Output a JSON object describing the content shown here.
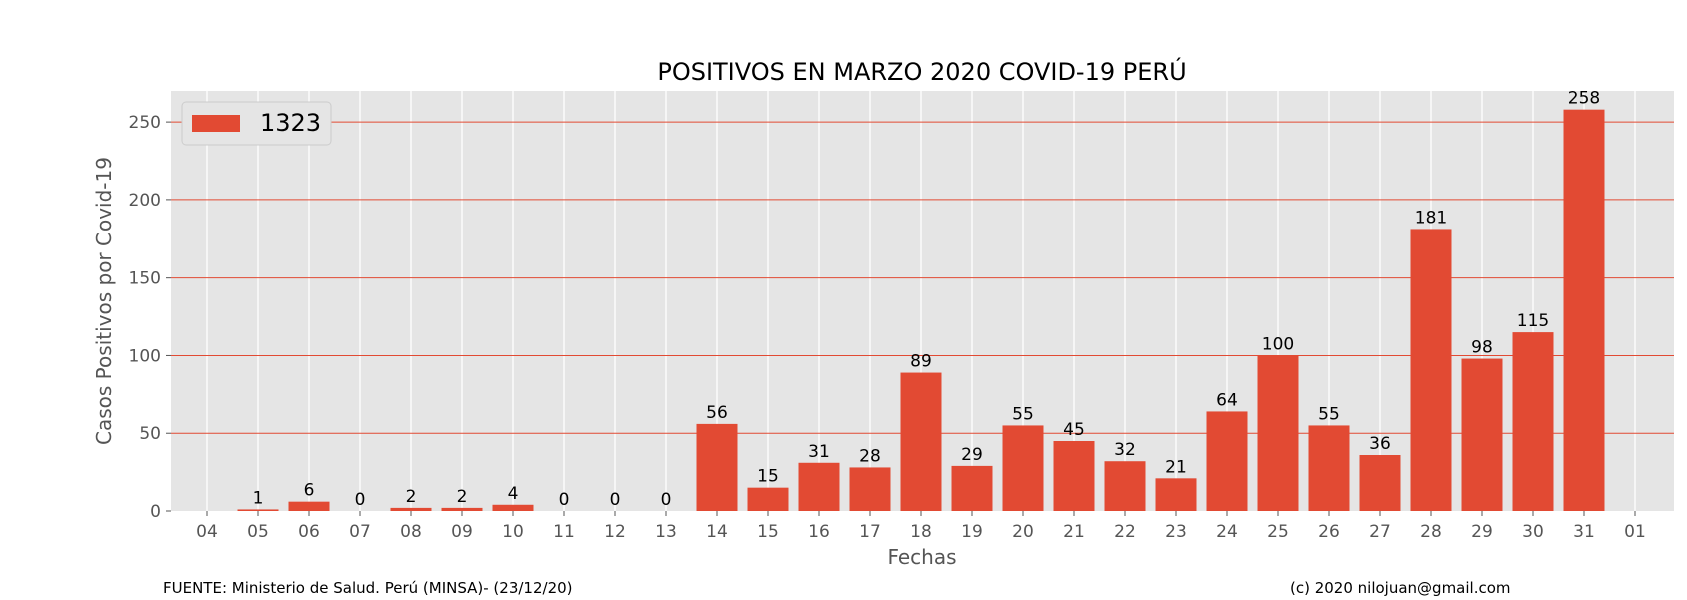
{
  "chart_data": {
    "type": "bar",
    "title": "POSITIVOS EN MARZO 2020 COVID-19 PERÚ",
    "xlabel": "Fechas",
    "ylabel": "Casos Positivos por Covid-19",
    "categories": [
      "05",
      "06",
      "07",
      "08",
      "09",
      "10",
      "11",
      "12",
      "13",
      "14",
      "15",
      "16",
      "17",
      "18",
      "19",
      "20",
      "21",
      "22",
      "23",
      "24",
      "25",
      "26",
      "27",
      "28",
      "29",
      "30",
      "31"
    ],
    "x_ticks": [
      "04",
      "05",
      "06",
      "07",
      "08",
      "09",
      "10",
      "11",
      "12",
      "13",
      "14",
      "15",
      "16",
      "17",
      "18",
      "19",
      "20",
      "21",
      "22",
      "23",
      "24",
      "25",
      "26",
      "27",
      "28",
      "29",
      "30",
      "31",
      "01"
    ],
    "series": [
      {
        "name": "1323",
        "values": [
          1,
          6,
          0,
          2,
          2,
          4,
          0,
          0,
          0,
          56,
          15,
          31,
          28,
          89,
          29,
          55,
          45,
          32,
          21,
          64,
          100,
          55,
          36,
          181,
          98,
          115,
          258
        ]
      }
    ],
    "ylim": [
      0,
      270
    ],
    "yticks": [
      0,
      50,
      100,
      150,
      200,
      250
    ],
    "grid": true,
    "legend": "top-left",
    "colors": {
      "bar": "#e24a33",
      "background": "#e5e5e5",
      "hgrid": "#e24a33",
      "vgrid": "#ffffff"
    }
  },
  "footer": {
    "source": "FUENTE: Ministerio de Salud. Perú (MINSA)- (23/12/20)",
    "credit": "(c) 2020 nilojuan@gmail.com"
  }
}
